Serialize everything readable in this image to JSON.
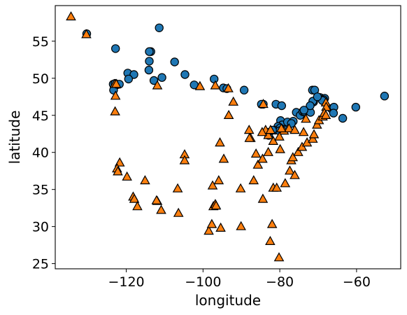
{
  "chart_data": {
    "type": "scatter",
    "xlabel": "longitude",
    "ylabel": "latitude",
    "xlim": [
      -138.5,
      -48.5
    ],
    "ylim": [
      24.3,
      59.8
    ],
    "xticks": [
      -120,
      -100,
      -80,
      -60
    ],
    "yticks": [
      25,
      30,
      35,
      40,
      45,
      50,
      55
    ],
    "xtick_labels": [
      "−120",
      "−100",
      "−80",
      "−60"
    ],
    "ytick_labels": [
      "25",
      "30",
      "35",
      "40",
      "45",
      "50",
      "55"
    ],
    "grid": false,
    "series": [
      {
        "marker": "circle",
        "color": "#1f77b4",
        "points": [
          [
            -130.3,
            56.0
          ],
          [
            -122.8,
            54.0
          ],
          [
            -111.4,
            56.8
          ],
          [
            -107.4,
            52.2
          ],
          [
            -104.7,
            50.5
          ],
          [
            -119.6,
            50.7
          ],
          [
            -118.0,
            50.5
          ],
          [
            -114.1,
            51.1
          ],
          [
            -113.6,
            53.6
          ],
          [
            -114.0,
            53.6
          ],
          [
            -114.0,
            52.3
          ],
          [
            -110.7,
            50.1
          ],
          [
            -112.8,
            49.7
          ],
          [
            -123.4,
            49.2
          ],
          [
            -122.9,
            49.3
          ],
          [
            -122.5,
            49.1
          ],
          [
            -123.3,
            48.4
          ],
          [
            -122.5,
            49.2
          ],
          [
            -121.8,
            49.2
          ],
          [
            -119.4,
            49.9
          ],
          [
            -102.3,
            49.1
          ],
          [
            -97.1,
            49.9
          ],
          [
            -94.7,
            48.7
          ],
          [
            -93.8,
            48.6
          ],
          [
            -89.3,
            48.4
          ],
          [
            -84.3,
            46.5
          ],
          [
            -81.0,
            46.5
          ],
          [
            -79.5,
            46.3
          ],
          [
            -79.8,
            44.3
          ],
          [
            -79.4,
            43.7
          ],
          [
            -80.5,
            43.5
          ],
          [
            -81.2,
            43.0
          ],
          [
            -82.9,
            42.3
          ],
          [
            -83.0,
            42.7
          ],
          [
            -79.0,
            43.1
          ],
          [
            -78.0,
            44.1
          ],
          [
            -76.5,
            44.2
          ],
          [
            -75.7,
            45.4
          ],
          [
            -74.7,
            45.0
          ],
          [
            -74.0,
            45.5
          ],
          [
            -73.6,
            45.5
          ],
          [
            -72.7,
            45.6
          ],
          [
            -72.0,
            45.4
          ],
          [
            -71.2,
            46.8
          ],
          [
            -71.5,
            48.4
          ],
          [
            -70.9,
            48.4
          ],
          [
            -69.5,
            47.4
          ],
          [
            -68.3,
            47.3
          ],
          [
            -68.6,
            47.1
          ],
          [
            -68.9,
            47.0
          ],
          [
            -66.6,
            45.9
          ],
          [
            -65.9,
            46.1
          ],
          [
            -63.6,
            44.6
          ],
          [
            -66.0,
            45.3
          ],
          [
            -60.2,
            46.1
          ],
          [
            -52.7,
            47.6
          ],
          [
            -71.4,
            46.9
          ],
          [
            -72.1,
            46.3
          ],
          [
            -73.7,
            45.7
          ],
          [
            -77.0,
            43.9
          ],
          [
            -79.9,
            43.3
          ],
          [
            -80.1,
            42.9
          ],
          [
            -81.9,
            43.0
          ],
          [
            -84.8,
            46.5
          ],
          [
            -70.2,
            47.5
          ]
        ]
      },
      {
        "marker": "triangle",
        "color": "#ff7f0e",
        "points": [
          [
            -134.4,
            58.3
          ],
          [
            -130.4,
            55.9
          ],
          [
            -123.0,
            49.2
          ],
          [
            -122.8,
            47.6
          ],
          [
            -122.6,
            49.2
          ],
          [
            -122.9,
            45.5
          ],
          [
            -121.7,
            38.6
          ],
          [
            -122.4,
            37.8
          ],
          [
            -122.2,
            37.4
          ],
          [
            -119.8,
            36.7
          ],
          [
            -118.2,
            34.0
          ],
          [
            -117.9,
            33.7
          ],
          [
            -117.1,
            32.7
          ],
          [
            -115.1,
            36.2
          ],
          [
            -111.9,
            33.4
          ],
          [
            -110.9,
            32.2
          ],
          [
            -112.1,
            33.5
          ],
          [
            -106.6,
            35.1
          ],
          [
            -106.4,
            31.8
          ],
          [
            -104.8,
            39.7
          ],
          [
            -104.8,
            38.9
          ],
          [
            -97.5,
            35.5
          ],
          [
            -96.8,
            32.8
          ],
          [
            -97.3,
            32.7
          ],
          [
            -95.4,
            29.8
          ],
          [
            -98.5,
            29.4
          ],
          [
            -97.7,
            30.3
          ],
          [
            -95.9,
            36.2
          ],
          [
            -94.6,
            39.1
          ],
          [
            -95.6,
            41.3
          ],
          [
            -93.3,
            45.0
          ],
          [
            -90.2,
            35.1
          ],
          [
            -90.1,
            30.0
          ],
          [
            -87.6,
            41.9
          ],
          [
            -88.0,
            43.0
          ],
          [
            -86.8,
            36.2
          ],
          [
            -86.2,
            39.8
          ],
          [
            -85.7,
            38.3
          ],
          [
            -84.5,
            39.1
          ],
          [
            -84.4,
            33.7
          ],
          [
            -83.0,
            40.0
          ],
          [
            -82.0,
            30.3
          ],
          [
            -82.5,
            28.0
          ],
          [
            -80.2,
            25.8
          ],
          [
            -81.7,
            35.2
          ],
          [
            -80.8,
            35.2
          ],
          [
            -78.6,
            35.8
          ],
          [
            -77.4,
            37.5
          ],
          [
            -77.0,
            38.9
          ],
          [
            -76.6,
            39.3
          ],
          [
            -75.2,
            40.0
          ],
          [
            -74.2,
            40.7
          ],
          [
            -72.9,
            41.3
          ],
          [
            -71.4,
            41.8
          ],
          [
            -76.1,
            36.9
          ],
          [
            -79.9,
            40.4
          ],
          [
            -81.7,
            41.5
          ],
          [
            -83.0,
            42.3
          ],
          [
            -83.7,
            43.0
          ],
          [
            -84.6,
            42.7
          ],
          [
            -78.9,
            42.9
          ],
          [
            -77.6,
            43.2
          ],
          [
            -76.1,
            43.0
          ],
          [
            -73.8,
            42.7
          ],
          [
            -73.2,
            44.5
          ],
          [
            -71.1,
            42.4
          ],
          [
            -70.3,
            43.7
          ],
          [
            -69.8,
            44.3
          ],
          [
            -68.8,
            44.8
          ],
          [
            -68.0,
            46.7
          ],
          [
            -67.9,
            46.1
          ],
          [
            -68.4,
            45.3
          ],
          [
            -68.0,
            45.0
          ],
          [
            -100.8,
            48.9
          ],
          [
            -111.9,
            49.0
          ],
          [
            -96.8,
            49.0
          ],
          [
            -93.4,
            48.6
          ],
          [
            -92.1,
            46.8
          ],
          [
            -84.3,
            46.5
          ],
          [
            -82.4,
            43.0
          ],
          [
            -79.6,
            43.2
          ],
          [
            -80.1,
            42.1
          ],
          [
            -87.9,
            41.9
          ],
          [
            -96.8,
            33.0
          ],
          [
            -96.6,
            32.8
          ]
        ]
      }
    ]
  }
}
